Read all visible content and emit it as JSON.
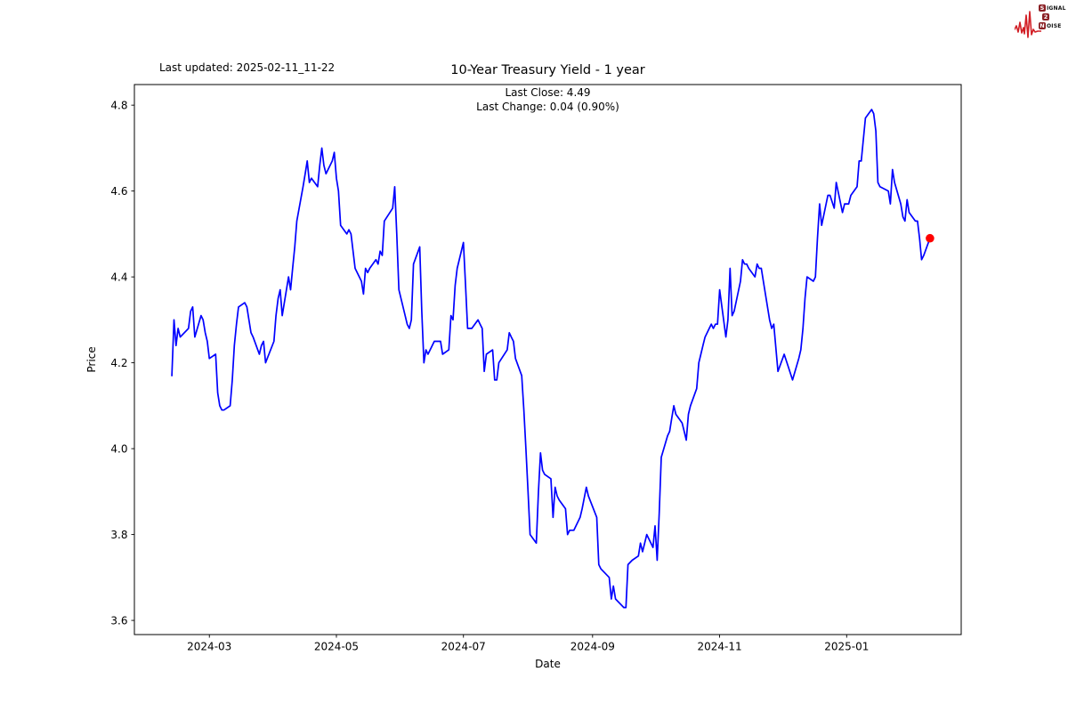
{
  "logo": {
    "box_color": "#8a2025",
    "wave_color": "#d21f26",
    "text_color": "#111111",
    "rows": [
      {
        "boxed": "S",
        "rest": "IGNAL"
      },
      {
        "boxed": "2",
        "rest": ""
      },
      {
        "boxed": "N",
        "rest": "OISE"
      }
    ]
  },
  "chart_data": {
    "type": "line",
    "title": "10-Year Treasury Yield - 1 year",
    "subtitle": [
      "Last Close: 4.49",
      "Last Change: 0.04 (0.90%)"
    ],
    "last_updated": "Last updated: 2025-02-11_11-22",
    "xlabel": "Date",
    "ylabel": "Price",
    "last_close": 4.49,
    "last_change": 0.04,
    "last_change_pct": "0.90%",
    "xlim": [
      "2024-01-25",
      "2025-02-25"
    ],
    "ylim": [
      3.567,
      4.848
    ],
    "yticks": [
      3.6,
      3.8,
      4.0,
      4.2,
      4.4,
      4.6,
      4.8
    ],
    "xticks": [
      {
        "date": "2024-03-01",
        "label": "2024-03"
      },
      {
        "date": "2024-05-01",
        "label": "2024-05"
      },
      {
        "date": "2024-07-01",
        "label": "2024-07"
      },
      {
        "date": "2024-09-01",
        "label": "2024-09"
      },
      {
        "date": "2024-11-01",
        "label": "2024-11"
      },
      {
        "date": "2025-01-01",
        "label": "2025-01"
      }
    ],
    "grid": false,
    "legend": "none",
    "axis_color": "#000000",
    "series": [
      {
        "name": "10-Year Treasury Yield",
        "color": "#0000ff",
        "width": 1.7,
        "points": [
          [
            "2024-02-12",
            4.17
          ],
          [
            "2024-02-13",
            4.3
          ],
          [
            "2024-02-14",
            4.24
          ],
          [
            "2024-02-15",
            4.28
          ],
          [
            "2024-02-16",
            4.26
          ],
          [
            "2024-02-20",
            4.28
          ],
          [
            "2024-02-21",
            4.32
          ],
          [
            "2024-02-22",
            4.33
          ],
          [
            "2024-02-23",
            4.26
          ],
          [
            "2024-02-26",
            4.31
          ],
          [
            "2024-02-27",
            4.3
          ],
          [
            "2024-02-28",
            4.27
          ],
          [
            "2024-02-29",
            4.25
          ],
          [
            "2024-03-01",
            4.21
          ],
          [
            "2024-03-04",
            4.22
          ],
          [
            "2024-03-05",
            4.13
          ],
          [
            "2024-03-06",
            4.1
          ],
          [
            "2024-03-07",
            4.09
          ],
          [
            "2024-03-08",
            4.09
          ],
          [
            "2024-03-11",
            4.1
          ],
          [
            "2024-03-12",
            4.16
          ],
          [
            "2024-03-13",
            4.24
          ],
          [
            "2024-03-14",
            4.29
          ],
          [
            "2024-03-15",
            4.33
          ],
          [
            "2024-03-18",
            4.34
          ],
          [
            "2024-03-19",
            4.33
          ],
          [
            "2024-03-20",
            4.3
          ],
          [
            "2024-03-21",
            4.27
          ],
          [
            "2024-03-22",
            4.26
          ],
          [
            "2024-03-25",
            4.22
          ],
          [
            "2024-03-26",
            4.24
          ],
          [
            "2024-03-27",
            4.25
          ],
          [
            "2024-03-28",
            4.2
          ],
          [
            "2024-04-01",
            4.25
          ],
          [
            "2024-04-02",
            4.31
          ],
          [
            "2024-04-03",
            4.35
          ],
          [
            "2024-04-04",
            4.37
          ],
          [
            "2024-04-05",
            4.31
          ],
          [
            "2024-04-08",
            4.4
          ],
          [
            "2024-04-09",
            4.37
          ],
          [
            "2024-04-10",
            4.42
          ],
          [
            "2024-04-11",
            4.47
          ],
          [
            "2024-04-12",
            4.53
          ],
          [
            "2024-04-15",
            4.61
          ],
          [
            "2024-04-16",
            4.64
          ],
          [
            "2024-04-17",
            4.67
          ],
          [
            "2024-04-18",
            4.62
          ],
          [
            "2024-04-19",
            4.63
          ],
          [
            "2024-04-22",
            4.61
          ],
          [
            "2024-04-23",
            4.66
          ],
          [
            "2024-04-24",
            4.7
          ],
          [
            "2024-04-25",
            4.66
          ],
          [
            "2024-04-26",
            4.64
          ],
          [
            "2024-04-29",
            4.67
          ],
          [
            "2024-04-30",
            4.69
          ],
          [
            "2024-05-01",
            4.63
          ],
          [
            "2024-05-02",
            4.6
          ],
          [
            "2024-05-03",
            4.52
          ],
          [
            "2024-05-06",
            4.5
          ],
          [
            "2024-05-07",
            4.51
          ],
          [
            "2024-05-08",
            4.5
          ],
          [
            "2024-05-09",
            4.46
          ],
          [
            "2024-05-10",
            4.42
          ],
          [
            "2024-05-13",
            4.39
          ],
          [
            "2024-05-14",
            4.36
          ],
          [
            "2024-05-15",
            4.42
          ],
          [
            "2024-05-16",
            4.41
          ],
          [
            "2024-05-17",
            4.42
          ],
          [
            "2024-05-20",
            4.44
          ],
          [
            "2024-05-21",
            4.43
          ],
          [
            "2024-05-22",
            4.46
          ],
          [
            "2024-05-23",
            4.45
          ],
          [
            "2024-05-24",
            4.53
          ],
          [
            "2024-05-28",
            4.56
          ],
          [
            "2024-05-29",
            4.61
          ],
          [
            "2024-05-30",
            4.5
          ],
          [
            "2024-05-31",
            4.37
          ],
          [
            "2024-06-03",
            4.31
          ],
          [
            "2024-06-04",
            4.29
          ],
          [
            "2024-06-05",
            4.28
          ],
          [
            "2024-06-06",
            4.3
          ],
          [
            "2024-06-07",
            4.43
          ],
          [
            "2024-06-10",
            4.47
          ],
          [
            "2024-06-11",
            4.32
          ],
          [
            "2024-06-12",
            4.2
          ],
          [
            "2024-06-13",
            4.23
          ],
          [
            "2024-06-14",
            4.22
          ],
          [
            "2024-06-17",
            4.25
          ],
          [
            "2024-06-18",
            4.25
          ],
          [
            "2024-06-20",
            4.25
          ],
          [
            "2024-06-21",
            4.22
          ],
          [
            "2024-06-24",
            4.23
          ],
          [
            "2024-06-25",
            4.31
          ],
          [
            "2024-06-26",
            4.3
          ],
          [
            "2024-06-27",
            4.38
          ],
          [
            "2024-06-28",
            4.42
          ],
          [
            "2024-07-01",
            4.48
          ],
          [
            "2024-07-02",
            4.38
          ],
          [
            "2024-07-03",
            4.28
          ],
          [
            "2024-07-05",
            4.28
          ],
          [
            "2024-07-08",
            4.3
          ],
          [
            "2024-07-09",
            4.29
          ],
          [
            "2024-07-10",
            4.28
          ],
          [
            "2024-07-11",
            4.18
          ],
          [
            "2024-07-12",
            4.22
          ],
          [
            "2024-07-15",
            4.23
          ],
          [
            "2024-07-16",
            4.16
          ],
          [
            "2024-07-17",
            4.16
          ],
          [
            "2024-07-18",
            4.2
          ],
          [
            "2024-07-22",
            4.23
          ],
          [
            "2024-07-23",
            4.27
          ],
          [
            "2024-07-24",
            4.26
          ],
          [
            "2024-07-25",
            4.25
          ],
          [
            "2024-07-26",
            4.21
          ],
          [
            "2024-07-29",
            4.17
          ],
          [
            "2024-07-30",
            4.09
          ],
          [
            "2024-07-31",
            4.0
          ],
          [
            "2024-08-01",
            3.9
          ],
          [
            "2024-08-02",
            3.8
          ],
          [
            "2024-08-05",
            3.78
          ],
          [
            "2024-08-06",
            3.9
          ],
          [
            "2024-08-07",
            3.99
          ],
          [
            "2024-08-08",
            3.95
          ],
          [
            "2024-08-09",
            3.94
          ],
          [
            "2024-08-12",
            3.93
          ],
          [
            "2024-08-13",
            3.84
          ],
          [
            "2024-08-14",
            3.91
          ],
          [
            "2024-08-15",
            3.89
          ],
          [
            "2024-08-16",
            3.88
          ],
          [
            "2024-08-19",
            3.86
          ],
          [
            "2024-08-20",
            3.8
          ],
          [
            "2024-08-21",
            3.81
          ],
          [
            "2024-08-23",
            3.81
          ],
          [
            "2024-08-26",
            3.84
          ],
          [
            "2024-08-27",
            3.86
          ],
          [
            "2024-08-29",
            3.91
          ],
          [
            "2024-08-30",
            3.89
          ],
          [
            "2024-09-03",
            3.84
          ],
          [
            "2024-09-04",
            3.73
          ],
          [
            "2024-09-05",
            3.72
          ],
          [
            "2024-09-09",
            3.7
          ],
          [
            "2024-09-10",
            3.65
          ],
          [
            "2024-09-11",
            3.68
          ],
          [
            "2024-09-12",
            3.65
          ],
          [
            "2024-09-16",
            3.63
          ],
          [
            "2024-09-17",
            3.63
          ],
          [
            "2024-09-18",
            3.73
          ],
          [
            "2024-09-20",
            3.74
          ],
          [
            "2024-09-23",
            3.75
          ],
          [
            "2024-09-24",
            3.78
          ],
          [
            "2024-09-25",
            3.76
          ],
          [
            "2024-09-27",
            3.8
          ],
          [
            "2024-09-30",
            3.77
          ],
          [
            "2024-10-01",
            3.82
          ],
          [
            "2024-10-02",
            3.74
          ],
          [
            "2024-10-03",
            3.85
          ],
          [
            "2024-10-04",
            3.98
          ],
          [
            "2024-10-07",
            4.03
          ],
          [
            "2024-10-08",
            4.04
          ],
          [
            "2024-10-09",
            4.07
          ],
          [
            "2024-10-10",
            4.1
          ],
          [
            "2024-10-11",
            4.08
          ],
          [
            "2024-10-14",
            4.06
          ],
          [
            "2024-10-15",
            4.04
          ],
          [
            "2024-10-16",
            4.02
          ],
          [
            "2024-10-17",
            4.08
          ],
          [
            "2024-10-18",
            4.1
          ],
          [
            "2024-10-21",
            4.14
          ],
          [
            "2024-10-22",
            4.2
          ],
          [
            "2024-10-23",
            4.22
          ],
          [
            "2024-10-24",
            4.24
          ],
          [
            "2024-10-25",
            4.26
          ],
          [
            "2024-10-28",
            4.29
          ],
          [
            "2024-10-29",
            4.28
          ],
          [
            "2024-10-30",
            4.29
          ],
          [
            "2024-10-31",
            4.29
          ],
          [
            "2024-11-01",
            4.37
          ],
          [
            "2024-11-04",
            4.26
          ],
          [
            "2024-11-05",
            4.3
          ],
          [
            "2024-11-06",
            4.42
          ],
          [
            "2024-11-07",
            4.31
          ],
          [
            "2024-11-08",
            4.32
          ],
          [
            "2024-11-11",
            4.39
          ],
          [
            "2024-11-12",
            4.44
          ],
          [
            "2024-11-13",
            4.43
          ],
          [
            "2024-11-14",
            4.43
          ],
          [
            "2024-11-15",
            4.42
          ],
          [
            "2024-11-18",
            4.4
          ],
          [
            "2024-11-19",
            4.43
          ],
          [
            "2024-11-20",
            4.42
          ],
          [
            "2024-11-21",
            4.42
          ],
          [
            "2024-11-22",
            4.39
          ],
          [
            "2024-11-25",
            4.3
          ],
          [
            "2024-11-26",
            4.28
          ],
          [
            "2024-11-27",
            4.29
          ],
          [
            "2024-11-29",
            4.18
          ],
          [
            "2024-12-02",
            4.22
          ],
          [
            "2024-12-04",
            4.19
          ],
          [
            "2024-12-06",
            4.16
          ],
          [
            "2024-12-09",
            4.21
          ],
          [
            "2024-12-10",
            4.23
          ],
          [
            "2024-12-11",
            4.28
          ],
          [
            "2024-12-12",
            4.35
          ],
          [
            "2024-12-13",
            4.4
          ],
          [
            "2024-12-16",
            4.39
          ],
          [
            "2024-12-17",
            4.4
          ],
          [
            "2024-12-18",
            4.49
          ],
          [
            "2024-12-19",
            4.57
          ],
          [
            "2024-12-20",
            4.52
          ],
          [
            "2024-12-23",
            4.59
          ],
          [
            "2024-12-24",
            4.59
          ],
          [
            "2024-12-26",
            4.56
          ],
          [
            "2024-12-27",
            4.62
          ],
          [
            "2024-12-30",
            4.55
          ],
          [
            "2024-12-31",
            4.57
          ],
          [
            "2025-01-02",
            4.57
          ],
          [
            "2025-01-03",
            4.59
          ],
          [
            "2025-01-06",
            4.61
          ],
          [
            "2025-01-07",
            4.67
          ],
          [
            "2025-01-08",
            4.67
          ],
          [
            "2025-01-10",
            4.77
          ],
          [
            "2025-01-13",
            4.79
          ],
          [
            "2025-01-14",
            4.78
          ],
          [
            "2025-01-15",
            4.74
          ],
          [
            "2025-01-16",
            4.62
          ],
          [
            "2025-01-17",
            4.61
          ],
          [
            "2025-01-21",
            4.6
          ],
          [
            "2025-01-22",
            4.57
          ],
          [
            "2025-01-23",
            4.65
          ],
          [
            "2025-01-24",
            4.62
          ],
          [
            "2025-01-27",
            4.57
          ],
          [
            "2025-01-28",
            4.54
          ],
          [
            "2025-01-29",
            4.53
          ],
          [
            "2025-01-30",
            4.58
          ],
          [
            "2025-01-31",
            4.55
          ],
          [
            "2025-02-03",
            4.53
          ],
          [
            "2025-02-04",
            4.53
          ],
          [
            "2025-02-05",
            4.49
          ],
          [
            "2025-02-06",
            4.44
          ],
          [
            "2025-02-07",
            4.45
          ],
          [
            "2025-02-10",
            4.49
          ]
        ]
      }
    ],
    "last_point_marker": {
      "date": "2025-02-10",
      "value": 4.49,
      "color": "#ff0000",
      "radius": 4.8
    }
  }
}
